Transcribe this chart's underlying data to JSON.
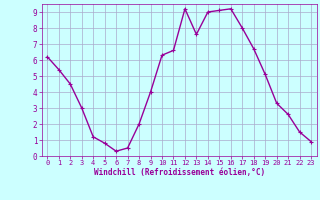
{
  "x": [
    0,
    1,
    2,
    3,
    4,
    5,
    6,
    7,
    8,
    9,
    10,
    11,
    12,
    13,
    14,
    15,
    16,
    17,
    18,
    19,
    20,
    21,
    22,
    23
  ],
  "y": [
    6.2,
    5.4,
    4.5,
    3.0,
    1.2,
    0.8,
    0.3,
    0.5,
    2.0,
    4.0,
    6.3,
    6.6,
    9.2,
    7.6,
    9.0,
    9.1,
    9.2,
    8.0,
    6.7,
    5.1,
    3.3,
    2.6,
    1.5,
    0.9
  ],
  "line_color": "#990099",
  "marker": "+",
  "marker_size": 3,
  "linewidth": 1.0,
  "background_color": "#ccffff",
  "grid_color": "#aaaacc",
  "xlabel": "Windchill (Refroidissement éolien,°C)",
  "xlabel_color": "#990099",
  "tick_color": "#990099",
  "xlim": [
    -0.5,
    23.5
  ],
  "ylim": [
    0,
    9.5
  ],
  "yticks": [
    0,
    1,
    2,
    3,
    4,
    5,
    6,
    7,
    8,
    9
  ],
  "xticks": [
    0,
    1,
    2,
    3,
    4,
    5,
    6,
    7,
    8,
    9,
    10,
    11,
    12,
    13,
    14,
    15,
    16,
    17,
    18,
    19,
    20,
    21,
    22,
    23
  ]
}
